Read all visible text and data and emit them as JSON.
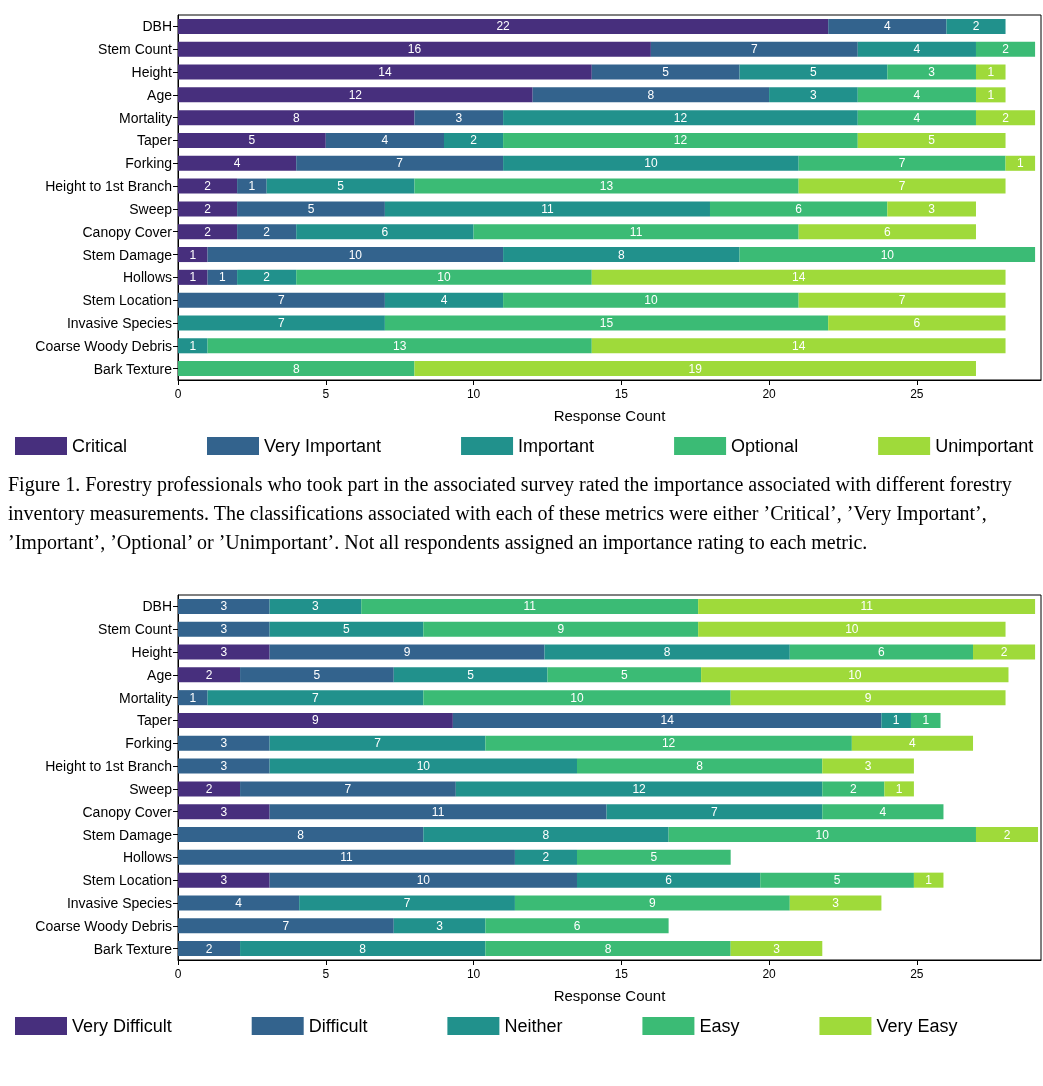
{
  "chart_data": [
    {
      "type": "bar",
      "orientation": "horizontal",
      "stacked": true,
      "grid": false,
      "legend": "bottom",
      "categories": [
        "DBH",
        "Stem Count",
        "Height",
        "Age",
        "Mortality",
        "Taper",
        "Forking",
        "Height to 1st Branch",
        "Sweep",
        "Canopy Cover",
        "Stem Damage",
        "Hollows",
        "Stem Location",
        "Invasive Species",
        "Coarse Woody Debris",
        "Bark Texture"
      ],
      "xlabel": "Response Count",
      "xlim": [
        0,
        29.2
      ],
      "xticks": [
        0,
        5,
        10,
        15,
        20,
        25
      ],
      "series": [
        {
          "name": "Critical",
          "color": "#472f7d",
          "values": [
            22,
            16,
            14,
            12,
            8,
            5,
            4,
            2,
            2,
            2,
            1,
            1,
            null,
            null,
            null,
            null
          ],
          "value_labels": [
            "22",
            "16",
            "14",
            "12",
            "8",
            "5",
            "4",
            "2",
            "2",
            "2",
            "1",
            "1",
            null,
            null,
            null,
            null
          ]
        },
        {
          "name": "Very Important",
          "color": "#33638d",
          "values": [
            4,
            7,
            5,
            8,
            3,
            4,
            7,
            1,
            5,
            2,
            10,
            1,
            7,
            null,
            null,
            null
          ],
          "value_labels": [
            "4",
            "7",
            "5",
            "8",
            "3",
            "4",
            "7",
            "1",
            "5",
            "2",
            "10",
            "1",
            "7",
            null,
            null,
            null
          ]
        },
        {
          "name": "Important",
          "color": "#21918c",
          "values": [
            2,
            4,
            5,
            3,
            12,
            2,
            10,
            5,
            11,
            6,
            8,
            2,
            4,
            7,
            1,
            null
          ],
          "value_labels": [
            "2",
            "4",
            "5",
            "3",
            "12",
            "2",
            "10",
            "5",
            "11",
            "6",
            "8",
            "2",
            "4",
            "7",
            "1",
            null
          ]
        },
        {
          "name": "Optional",
          "color": "#3bbb75",
          "values": [
            null,
            2,
            3,
            4,
            4,
            12,
            7,
            13,
            6,
            11,
            10,
            10,
            10,
            15,
            13,
            8
          ],
          "value_labels": [
            null,
            "2",
            "3",
            "4",
            "4",
            "12",
            "7",
            "13",
            "6",
            "11",
            "10",
            "10",
            "10",
            "15",
            "13",
            "8"
          ]
        },
        {
          "name": "Unimportant",
          "color": "#9fda3a",
          "values": [
            null,
            null,
            1,
            1,
            2,
            5,
            1,
            7,
            3,
            6,
            null,
            14,
            7,
            6,
            14,
            19
          ],
          "value_labels": [
            null,
            null,
            "1",
            "1",
            "2",
            "5",
            "1",
            "7",
            "3",
            "6",
            null,
            "14",
            "7",
            "6",
            "14",
            "19"
          ]
        }
      ],
      "annotations": [
        "Figure 1. Forestry professionals who took part in the associated survey rated the importance associated with different forestry inventory measurements. The classifications associated with each of these metrics were either ’Critical’, ’Very Important’, ’Important’, ’Optional’ or ’Unimportant’. Not all respondents assigned an importance rating to each metric."
      ]
    },
    {
      "type": "bar",
      "orientation": "horizontal",
      "stacked": true,
      "grid": false,
      "legend": "bottom",
      "categories": [
        "DBH",
        "Stem Count",
        "Height",
        "Age",
        "Mortality",
        "Taper",
        "Forking",
        "Height to 1st Branch",
        "Sweep",
        "Canopy Cover",
        "Stem Damage",
        "Hollows",
        "Stem Location",
        "Invasive Species",
        "Coarse Woody Debris",
        "Bark Texture"
      ],
      "xlabel": "Response Count",
      "xlim": [
        0,
        29.2
      ],
      "xticks": [
        0,
        5,
        10,
        15,
        20,
        25
      ],
      "series": [
        {
          "name": "Very Difficult",
          "color": "#472f7d",
          "values": [
            null,
            null,
            3.1,
            2.1,
            null,
            9.3,
            null,
            null,
            2.1,
            3.1,
            null,
            null,
            3.1,
            null,
            null,
            null
          ],
          "value_labels": [
            null,
            null,
            "3",
            "2",
            null,
            "9",
            null,
            null,
            "2",
            "3",
            null,
            null,
            "3",
            null,
            null,
            null
          ]
        },
        {
          "name": "Difficult",
          "color": "#33638d",
          "values": [
            3.1,
            3.1,
            9.3,
            5.2,
            1.0,
            14.5,
            3.1,
            3.1,
            7.3,
            11.4,
            8.3,
            11.4,
            10.4,
            4.1,
            7.3,
            2.1
          ],
          "value_labels": [
            "3",
            "3",
            "9",
            "5",
            "1",
            "14",
            "3",
            "3",
            "7",
            "11",
            "8",
            "11",
            "10",
            "4",
            "7",
            "2"
          ]
        },
        {
          "name": "Neither",
          "color": "#21918c",
          "values": [
            3.1,
            5.2,
            8.3,
            5.2,
            7.3,
            1.0,
            7.3,
            10.4,
            12.4,
            7.3,
            8.3,
            2.1,
            6.2,
            7.3,
            3.1,
            8.3
          ],
          "value_labels": [
            "3",
            "5",
            "8",
            "5",
            "7",
            "1",
            "7",
            "10",
            "12",
            "7",
            "8",
            "2",
            "6",
            "7",
            "3",
            "8"
          ]
        },
        {
          "name": "Easy",
          "color": "#3bbb75",
          "values": [
            11.4,
            9.3,
            6.2,
            5.2,
            10.4,
            1.0,
            12.4,
            8.3,
            2.1,
            4.1,
            10.4,
            5.2,
            5.2,
            9.3,
            6.2,
            8.3
          ],
          "value_labels": [
            "11",
            "9",
            "6",
            "5",
            "10",
            "1",
            "12",
            "8",
            "2",
            "4",
            "10",
            "5",
            "5",
            "9",
            "6",
            "8"
          ]
        },
        {
          "name": "Very Easy",
          "color": "#9fda3a",
          "values": [
            11.4,
            10.4,
            2.1,
            10.4,
            9.3,
            null,
            4.1,
            3.1,
            1.0,
            null,
            2.1,
            null,
            1.0,
            3.1,
            null,
            3.1
          ],
          "value_labels": [
            "11",
            "10",
            "2",
            "10",
            "9",
            null,
            "4",
            "3",
            "1",
            null,
            "2",
            null,
            "1",
            "3",
            null,
            "3"
          ]
        }
      ]
    }
  ]
}
